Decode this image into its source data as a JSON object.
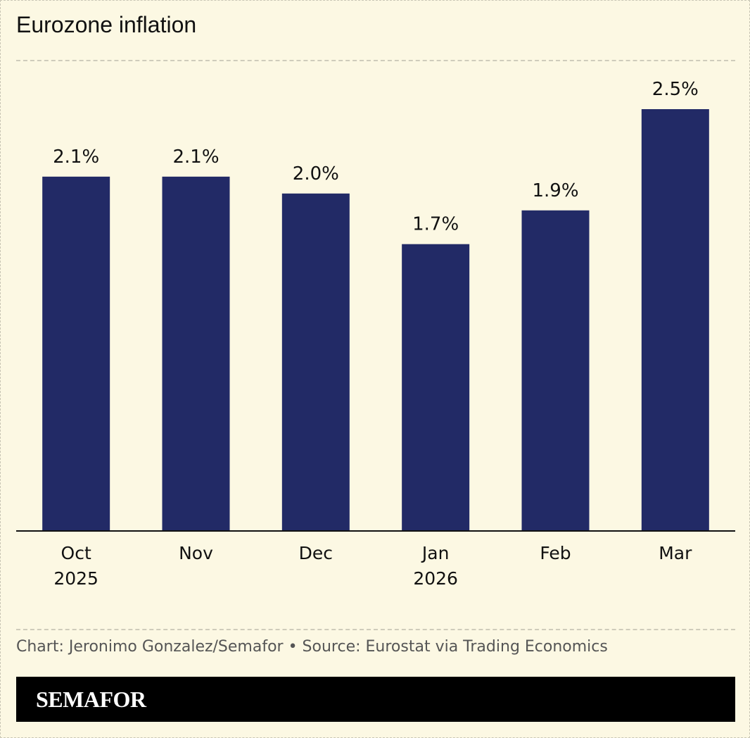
{
  "chart_data": {
    "type": "bar",
    "title": "Eurozone inflation",
    "categories": [
      "Oct 2025",
      "Nov",
      "Dec",
      "Jan 2026",
      "Feb",
      "Mar"
    ],
    "values": [
      2.1,
      2.1,
      2.0,
      1.7,
      1.9,
      2.5
    ],
    "value_labels": [
      "2.1%",
      "2.1%",
      "2.0%",
      "1.7%",
      "1.9%",
      "2.5%"
    ],
    "color": "#222a66",
    "ylim": [
      0,
      2.5
    ],
    "source": "Chart: Jeronimo Gonzalez/Semafor • Source: Eurostat via Trading Economics",
    "brand": "SEMAFOR"
  }
}
